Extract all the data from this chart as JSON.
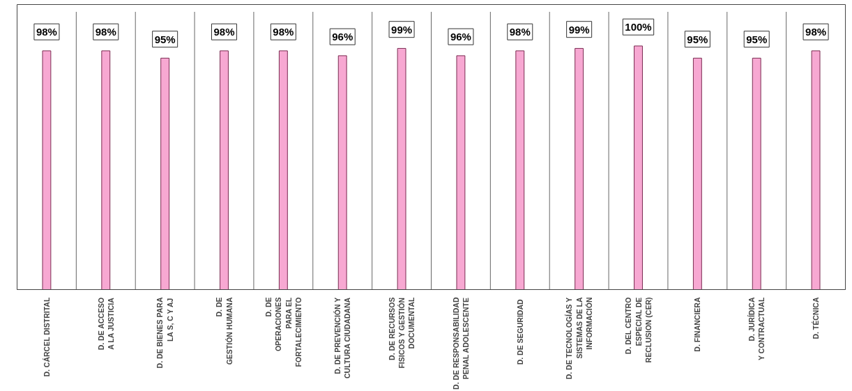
{
  "chart_data": {
    "type": "bar",
    "categories": [
      "D. CÁRCEL DISTRITAL",
      "D. DE ACCESO\nA LA JUSTICIA",
      "D. DE BIENES PARA\nLA S, C Y AJ",
      "D. DE\nGESTIÓN HUMANA",
      "D. DE\nOPERACIONES\nPARA EL\nFORTALECIMIENTO",
      "D. DE PREVENCIÓN Y\nCULTURA CIUDADANA",
      "D. DE RECURSOS\nFISICOS Y GESTIÓN\nDOCUMENTAL",
      "D. DE RESPONSABILIDAD\nPENAL ADOLESCENTE",
      "D. DE  SEGURIDAD",
      "D. DE TECNOLOGÍAS Y\nSISTEMAS DE LA\nINFORMACIÓN",
      "D. DEL CENTRO\nESPECIAL DE\nRECLUSION (CER)",
      "D. FINANCIERA",
      "D. JURÍDICA\nY CONTRACTUAL",
      "D. TÉCNICA"
    ],
    "values": [
      98,
      98,
      95,
      98,
      98,
      96,
      99,
      96,
      98,
      99,
      100,
      95,
      95,
      98
    ],
    "value_labels": [
      "98%",
      "98%",
      "95%",
      "98%",
      "98%",
      "96%",
      "99%",
      "96%",
      "98%",
      "99%",
      "100%",
      "95%",
      "95%",
      "98%"
    ],
    "color": "#f7a8d2",
    "grid": "x"
  }
}
